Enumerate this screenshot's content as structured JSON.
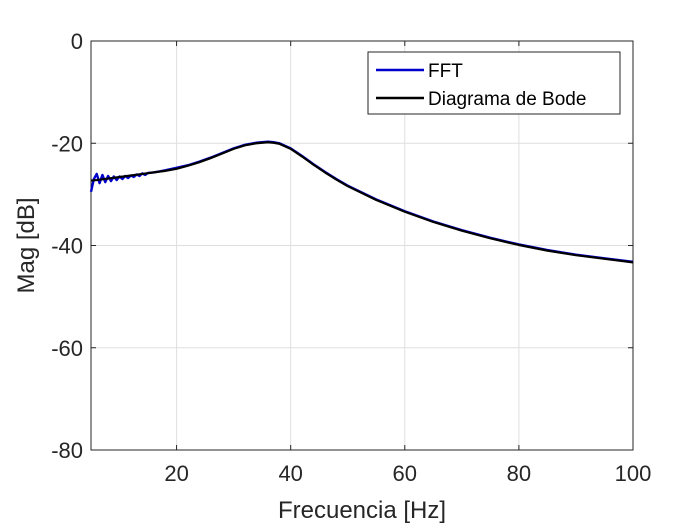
{
  "chart_data": {
    "type": "line",
    "xlabel": "Frecuencia [Hz]",
    "ylabel": "Mag [dB]",
    "xlim": [
      5,
      100
    ],
    "ylim": [
      -80,
      0
    ],
    "xticks": [
      20,
      40,
      60,
      80,
      100
    ],
    "yticks": [
      0,
      -20,
      -40,
      -60,
      -80
    ],
    "xtick_labels": [
      "20",
      "40",
      "60",
      "80",
      "100"
    ],
    "ytick_labels": [
      "0",
      "-20",
      "-40",
      "-60",
      "-80"
    ],
    "grid": true,
    "legend_position": "top-right",
    "series": [
      {
        "name": "FFT",
        "color": "#0000cc",
        "x": [
          5,
          5.5,
          6,
          6.5,
          7,
          7.5,
          8,
          8.5,
          9,
          9.5,
          10,
          10.5,
          11,
          11.5,
          12,
          12.5,
          13,
          13.5,
          14,
          14.5,
          15,
          16,
          17,
          18,
          20,
          22,
          24,
          26,
          28,
          30,
          32,
          34,
          36,
          37,
          38,
          40,
          42,
          44,
          46,
          48,
          50,
          55,
          60,
          65,
          70,
          75,
          80,
          85,
          90,
          95,
          100
        ],
        "y": [
          -29.5,
          -27,
          -26.0,
          -27.8,
          -26.2,
          -27.6,
          -26.4,
          -27.4,
          -26.5,
          -27.2,
          -26.5,
          -27.0,
          -26.4,
          -26.8,
          -26.3,
          -26.6,
          -26.1,
          -26.4,
          -25.9,
          -26.2,
          -25.8,
          -25.7,
          -25.5,
          -25.3,
          -24.8,
          -24.3,
          -23.6,
          -22.8,
          -21.9,
          -21.0,
          -20.3,
          -19.9,
          -19.7,
          -19.8,
          -20.0,
          -21.0,
          -22.5,
          -24.1,
          -25.6,
          -27.0,
          -28.3,
          -31.0,
          -33.3,
          -35.3,
          -37.0,
          -38.5,
          -39.8,
          -40.9,
          -41.8,
          -42.5,
          -43.2
        ]
      },
      {
        "name": "Diagrama de Bode",
        "color": "#000000",
        "x": [
          5,
          6,
          8,
          10,
          12,
          14,
          16,
          18,
          20,
          22,
          24,
          26,
          28,
          30,
          32,
          34,
          36,
          37,
          38,
          40,
          42,
          44,
          46,
          48,
          50,
          55,
          60,
          65,
          70,
          75,
          80,
          85,
          90,
          95,
          100
        ],
        "y": [
          -27.3,
          -27.2,
          -26.9,
          -26.6,
          -26.3,
          -26.0,
          -25.7,
          -25.4,
          -25.0,
          -24.4,
          -23.7,
          -22.9,
          -22.0,
          -21.1,
          -20.4,
          -20.0,
          -19.8,
          -19.9,
          -20.1,
          -21.1,
          -22.6,
          -24.2,
          -25.7,
          -27.1,
          -28.4,
          -31.1,
          -33.4,
          -35.4,
          -37.1,
          -38.6,
          -39.9,
          -41.0,
          -41.9,
          -42.6,
          -43.3
        ]
      }
    ]
  }
}
